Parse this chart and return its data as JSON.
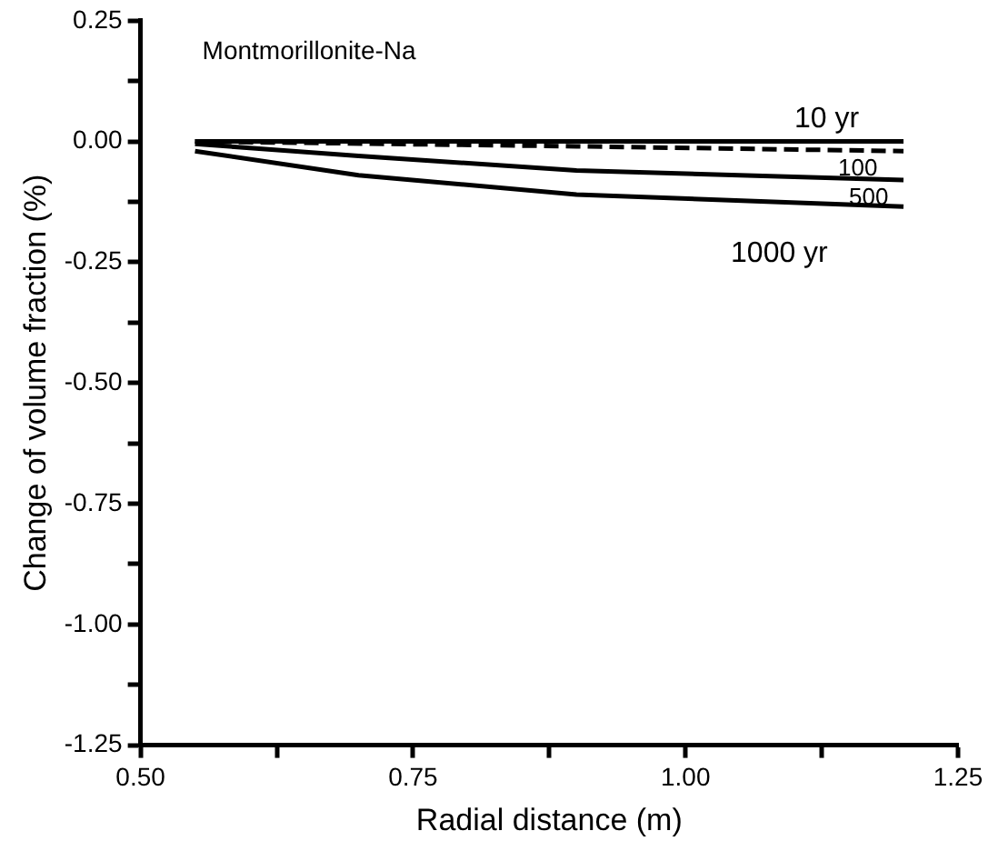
{
  "chart_data": {
    "type": "line",
    "xlabel": "Radial distance (m)",
    "ylabel": "Change of volume fraction (%)",
    "annotations": [
      "Montmorillonite-Na"
    ],
    "xlim": [
      0.5,
      1.25
    ],
    "xticks": [
      {
        "value": 0.5,
        "label": "0.50"
      },
      {
        "value": 0.625,
        "label": null
      },
      {
        "value": 0.75,
        "label": "0.75"
      },
      {
        "value": 0.875,
        "label": null
      },
      {
        "value": 1.0,
        "label": "1.00"
      },
      {
        "value": 1.125,
        "label": null
      },
      {
        "value": 1.25,
        "label": "1.25"
      }
    ],
    "ylim": [
      -1.25,
      0.25
    ],
    "yticks": [
      {
        "value": -1.25,
        "label": "-1.25"
      },
      {
        "value": -1.125,
        "label": null
      },
      {
        "value": -1.0,
        "label": "-1.00"
      },
      {
        "value": -0.875,
        "label": null
      },
      {
        "value": -0.75,
        "label": "-0.75"
      },
      {
        "value": -0.625,
        "label": null
      },
      {
        "value": -0.5,
        "label": "-0.50"
      },
      {
        "value": -0.375,
        "label": null
      },
      {
        "value": -0.25,
        "label": "-0.25"
      },
      {
        "value": -0.125,
        "label": null
      },
      {
        "value": 0.0,
        "label": "0.00"
      },
      {
        "value": 0.125,
        "label": null
      },
      {
        "value": 0.25,
        "label": "0.25"
      }
    ],
    "grid": false,
    "legend": false,
    "marker": "none",
    "series": [
      {
        "name": "10 yr",
        "color": "#000000",
        "x": [
          0.55,
          1.2
        ],
        "values": [
          0,
          0
        ]
      },
      {
        "name": "100",
        "color": "#000000",
        "line_style": "dashed",
        "x": [
          0.55,
          0.9,
          1.2
        ],
        "values": [
          0,
          -0.01,
          -0.02
        ]
      },
      {
        "name": "500",
        "color": "#000000",
        "x": [
          0.55,
          0.7,
          0.9,
          1.2
        ],
        "values": [
          -0.005,
          -0.03,
          -0.06,
          -0.08
        ]
      },
      {
        "name": "1000 yr",
        "color": "#000000",
        "x": [
          0.55,
          0.7,
          0.9,
          1.2
        ],
        "values": [
          -0.02,
          -0.07,
          -0.11,
          -0.135
        ]
      }
    ]
  }
}
